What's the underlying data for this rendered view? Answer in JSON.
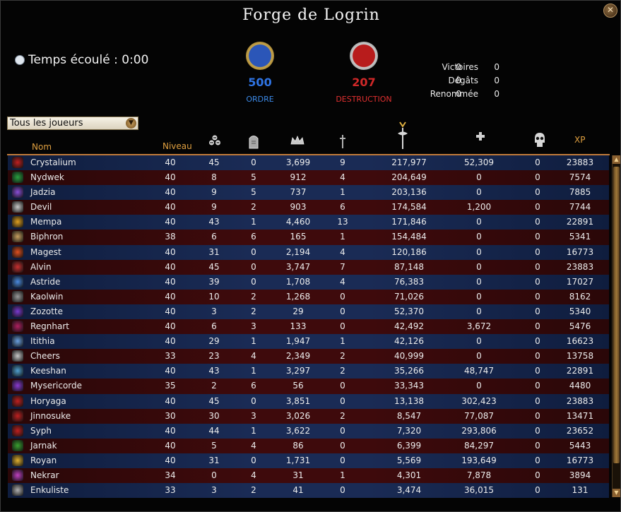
{
  "title": "Forge de Logrin",
  "timer": "Temps écoulé : 0:00",
  "realms": {
    "order": {
      "score": "500",
      "name": "ORDRE",
      "color": "#2f74e4"
    },
    "destruction": {
      "score": "207",
      "name": "DESTRUCTION",
      "color": "#d02828"
    }
  },
  "stats": [
    {
      "label": "Victoires",
      "order": "0",
      "destruction": "0"
    },
    {
      "label": "Dégâts",
      "order": "0",
      "destruction": "0"
    },
    {
      "label": "Renommée",
      "order": "0",
      "destruction": "0"
    }
  ],
  "filter": {
    "selected": "Tous les joueurs"
  },
  "columns": {
    "name": "Nom",
    "level": "Niveau",
    "kills_icon": "skulls-icon",
    "deaths_icon": "tombstone-icon",
    "renown_icon": "crown-icon",
    "solo_icon": "dagger-icon",
    "damage_icon": "axe-icon",
    "healing_icon": "cross-icon",
    "protection_icon": "skull-icon",
    "xp": "XP"
  },
  "players": [
    {
      "name": "Crystalium",
      "realm": "destruction",
      "level": "40",
      "kills": "45",
      "deaths": "0",
      "renown": "3,699",
      "solo": "9",
      "damage": "217,977",
      "healing": "52,309",
      "prot": "0",
      "xp": "23883"
    },
    {
      "name": "Nydwek",
      "realm": "destruction",
      "level": "40",
      "kills": "8",
      "deaths": "5",
      "renown": "912",
      "solo": "4",
      "damage": "204,649",
      "healing": "0",
      "prot": "0",
      "xp": "7574"
    },
    {
      "name": "Jadzia",
      "realm": "destruction",
      "level": "40",
      "kills": "9",
      "deaths": "5",
      "renown": "737",
      "solo": "1",
      "damage": "203,136",
      "healing": "0",
      "prot": "0",
      "xp": "7885"
    },
    {
      "name": "Devil",
      "realm": "destruction",
      "level": "40",
      "kills": "9",
      "deaths": "2",
      "renown": "903",
      "solo": "6",
      "damage": "174,584",
      "healing": "1,200",
      "prot": "0",
      "xp": "7744"
    },
    {
      "name": "Mempa",
      "realm": "order",
      "level": "40",
      "kills": "43",
      "deaths": "1",
      "renown": "4,460",
      "solo": "13",
      "damage": "171,846",
      "healing": "0",
      "prot": "0",
      "xp": "22891"
    },
    {
      "name": "Biphron",
      "realm": "destruction",
      "level": "38",
      "kills": "6",
      "deaths": "6",
      "renown": "165",
      "solo": "1",
      "damage": "154,484",
      "healing": "0",
      "prot": "0",
      "xp": "5341"
    },
    {
      "name": "Magest",
      "realm": "order",
      "level": "40",
      "kills": "31",
      "deaths": "0",
      "renown": "2,194",
      "solo": "4",
      "damage": "120,186",
      "healing": "0",
      "prot": "0",
      "xp": "16773"
    },
    {
      "name": "Alvin",
      "realm": "destruction",
      "level": "40",
      "kills": "45",
      "deaths": "0",
      "renown": "3,747",
      "solo": "7",
      "damage": "87,148",
      "healing": "0",
      "prot": "0",
      "xp": "23883"
    },
    {
      "name": "Astride",
      "realm": "order",
      "level": "40",
      "kills": "39",
      "deaths": "0",
      "renown": "1,708",
      "solo": "4",
      "damage": "76,383",
      "healing": "0",
      "prot": "0",
      "xp": "17027"
    },
    {
      "name": "Kaolwin",
      "realm": "destruction",
      "level": "40",
      "kills": "10",
      "deaths": "2",
      "renown": "1,268",
      "solo": "0",
      "damage": "71,026",
      "healing": "0",
      "prot": "0",
      "xp": "8162"
    },
    {
      "name": "Zozotte",
      "realm": "order",
      "level": "40",
      "kills": "3",
      "deaths": "2",
      "renown": "29",
      "solo": "0",
      "damage": "52,370",
      "healing": "0",
      "prot": "0",
      "xp": "5340"
    },
    {
      "name": "Regnhart",
      "realm": "destruction",
      "level": "40",
      "kills": "6",
      "deaths": "3",
      "renown": "133",
      "solo": "0",
      "damage": "42,492",
      "healing": "3,672",
      "prot": "0",
      "xp": "5476"
    },
    {
      "name": "Itithia",
      "realm": "order",
      "level": "40",
      "kills": "29",
      "deaths": "1",
      "renown": "1,947",
      "solo": "1",
      "damage": "42,126",
      "healing": "0",
      "prot": "0",
      "xp": "16623"
    },
    {
      "name": "Cheers",
      "realm": "destruction",
      "level": "33",
      "kills": "23",
      "deaths": "4",
      "renown": "2,349",
      "solo": "2",
      "damage": "40,999",
      "healing": "0",
      "prot": "0",
      "xp": "13758"
    },
    {
      "name": "Keeshan",
      "realm": "order",
      "level": "40",
      "kills": "43",
      "deaths": "1",
      "renown": "3,297",
      "solo": "2",
      "damage": "35,266",
      "healing": "48,747",
      "prot": "0",
      "xp": "22891"
    },
    {
      "name": "Mysericorde",
      "realm": "destruction",
      "level": "35",
      "kills": "2",
      "deaths": "6",
      "renown": "56",
      "solo": "0",
      "damage": "33,343",
      "healing": "0",
      "prot": "0",
      "xp": "4480"
    },
    {
      "name": "Horyaga",
      "realm": "order",
      "level": "40",
      "kills": "45",
      "deaths": "0",
      "renown": "3,851",
      "solo": "0",
      "damage": "13,138",
      "healing": "302,423",
      "prot": "0",
      "xp": "23883"
    },
    {
      "name": "Jinnosuke",
      "realm": "destruction",
      "level": "30",
      "kills": "30",
      "deaths": "3",
      "renown": "3,026",
      "solo": "2",
      "damage": "8,547",
      "healing": "77,087",
      "prot": "0",
      "xp": "13471"
    },
    {
      "name": "Syph",
      "realm": "order",
      "level": "40",
      "kills": "44",
      "deaths": "1",
      "renown": "3,622",
      "solo": "0",
      "damage": "7,320",
      "healing": "293,806",
      "prot": "0",
      "xp": "23652"
    },
    {
      "name": "Jarnak",
      "realm": "destruction",
      "level": "40",
      "kills": "5",
      "deaths": "4",
      "renown": "86",
      "solo": "0",
      "damage": "6,399",
      "healing": "84,297",
      "prot": "0",
      "xp": "5443"
    },
    {
      "name": "Royan",
      "realm": "order",
      "level": "40",
      "kills": "31",
      "deaths": "0",
      "renown": "1,731",
      "solo": "0",
      "damage": "5,569",
      "healing": "193,649",
      "prot": "0",
      "xp": "16773"
    },
    {
      "name": "Nekrar",
      "realm": "destruction",
      "level": "34",
      "kills": "0",
      "deaths": "4",
      "renown": "31",
      "solo": "1",
      "damage": "4,301",
      "healing": "7,878",
      "prot": "0",
      "xp": "3894"
    },
    {
      "name": "Enkuliste",
      "realm": "order",
      "level": "33",
      "kills": "3",
      "deaths": "2",
      "renown": "41",
      "solo": "0",
      "damage": "3,474",
      "healing": "36,015",
      "prot": "0",
      "xp": "131"
    }
  ]
}
